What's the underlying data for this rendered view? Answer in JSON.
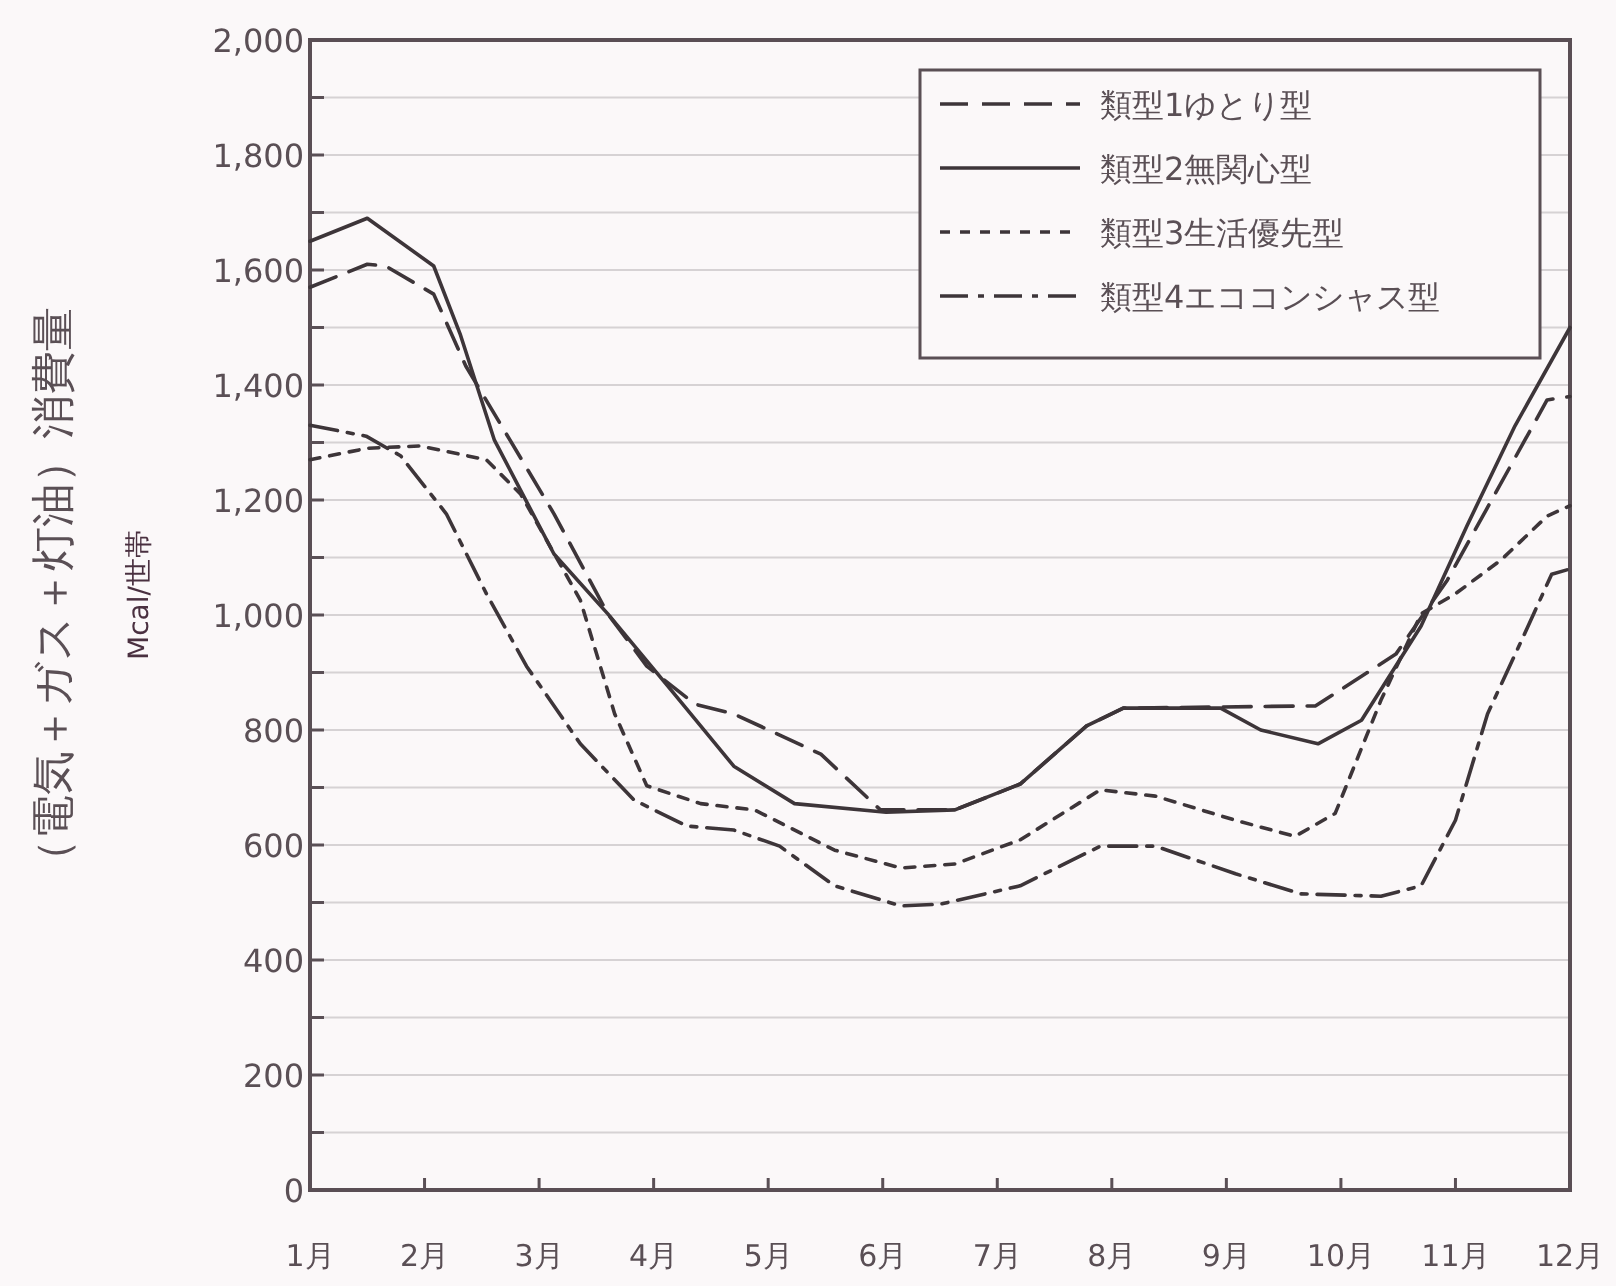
{
  "chart_data": {
    "type": "line",
    "ylabel": "（電気＋ガス＋灯油）消費量",
    "y2label": "Mcal/世帯",
    "xlim": [
      1,
      12
    ],
    "xticks": [
      {
        "value": 1,
        "label": "1月"
      },
      {
        "value": 2,
        "label": "2月"
      },
      {
        "value": 3,
        "label": "3月"
      },
      {
        "value": 4,
        "label": "4月"
      },
      {
        "value": 5,
        "label": "5月"
      },
      {
        "value": 6,
        "label": "6月"
      },
      {
        "value": 7,
        "label": "7月"
      },
      {
        "value": 8,
        "label": "8月"
      },
      {
        "value": 9,
        "label": "9月"
      },
      {
        "value": 10,
        "label": "10月"
      },
      {
        "value": 11,
        "label": "11月"
      },
      {
        "value": 12,
        "label": "12月"
      }
    ],
    "ylim": [
      0,
      2000
    ],
    "yticks": [
      0,
      {
        "value": 100,
        "label": null
      },
      200,
      {
        "value": 300,
        "label": null
      },
      400,
      {
        "value": 500,
        "label": null
      },
      600,
      {
        "value": 700,
        "label": null
      },
      800,
      {
        "value": 900,
        "label": null
      },
      {
        "value": 1000,
        "label": "1,000"
      },
      {
        "value": 1100,
        "label": null
      },
      {
        "value": 1200,
        "label": "1,200"
      },
      {
        "value": 1300,
        "label": null
      },
      {
        "value": 1400,
        "label": "1,400"
      },
      {
        "value": 1500,
        "label": null
      },
      {
        "value": 1600,
        "label": "1,600"
      },
      {
        "value": 1700,
        "label": null
      },
      {
        "value": 1800,
        "label": "1,800"
      },
      {
        "value": 1900,
        "label": null
      },
      {
        "value": 2000,
        "label": "2,000"
      }
    ],
    "grid": "y",
    "legend": "top right",
    "series": [
      {
        "name": "類型1ゆとり型",
        "color": "#3d3539",
        "line_style": "dashed",
        "x": [
          1,
          1.5,
          1.66,
          2.08,
          2.36,
          3.13,
          3.6,
          3.94,
          4.36,
          4.7,
          5.46,
          5.98,
          6.63,
          7.2,
          7.78,
          8.1,
          9.78,
          10.48,
          10.93,
          11.8,
          12
        ],
        "values": [
          1570,
          1610,
          1607,
          1558,
          1433,
          1176,
          1002,
          911,
          845,
          828,
          758,
          661,
          661,
          706,
          807,
          838,
          842,
          932,
          1061,
          1374,
          1380
        ]
      },
      {
        "name": "類型2無関心型",
        "color": "#3d3539",
        "line_style": "solid",
        "x": [
          1,
          1.5,
          2.08,
          2.31,
          2.61,
          3.13,
          3.6,
          4.18,
          4.7,
          5.23,
          6.03,
          6.63,
          7.2,
          7.78,
          8.1,
          8.95,
          9.3,
          9.8,
          10.18,
          10.7,
          11.1,
          11.52,
          12
        ],
        "values": [
          1650,
          1690,
          1607,
          1489,
          1304,
          1106,
          1002,
          863,
          737,
          672,
          657,
          661,
          706,
          807,
          838,
          838,
          800,
          776,
          817,
          981,
          1155,
          1329,
          1500
        ]
      },
      {
        "name": "類型3生活優先型",
        "color": "#3d3539",
        "line_style": "dotted",
        "x": [
          1,
          1.5,
          1.96,
          2.54,
          2.84,
          3.36,
          3.66,
          3.94,
          4.41,
          4.88,
          5.58,
          6.16,
          6.63,
          7.2,
          7.9,
          8.38,
          9.08,
          9.6,
          9.95,
          10.35,
          10.7,
          11.0,
          11.4,
          11.8,
          12
        ],
        "values": [
          1270,
          1290,
          1294,
          1270,
          1210,
          1026,
          828,
          703,
          672,
          661,
          591,
          560,
          567,
          609,
          696,
          685,
          643,
          615,
          655,
          852,
          1002,
          1037,
          1096,
          1172,
          1190
        ]
      },
      {
        "name": "類型4エココンシャス型",
        "color": "#3d3539",
        "line_style": "dashdot",
        "x": [
          1,
          1.49,
          1.79,
          2.19,
          2.54,
          2.89,
          3.36,
          3.83,
          4.29,
          4.7,
          5.1,
          5.58,
          6.16,
          6.5,
          7.2,
          7.9,
          8.38,
          9.08,
          9.65,
          10.35,
          10.7,
          11.0,
          11.28,
          11.58,
          11.84,
          12
        ],
        "values": [
          1330,
          1311,
          1277,
          1176,
          1037,
          911,
          776,
          678,
          633,
          626,
          598,
          529,
          494,
          497,
          529,
          598,
          598,
          550,
          515,
          511,
          529,
          643,
          828,
          957,
          1071,
          1080
        ]
      }
    ]
  }
}
